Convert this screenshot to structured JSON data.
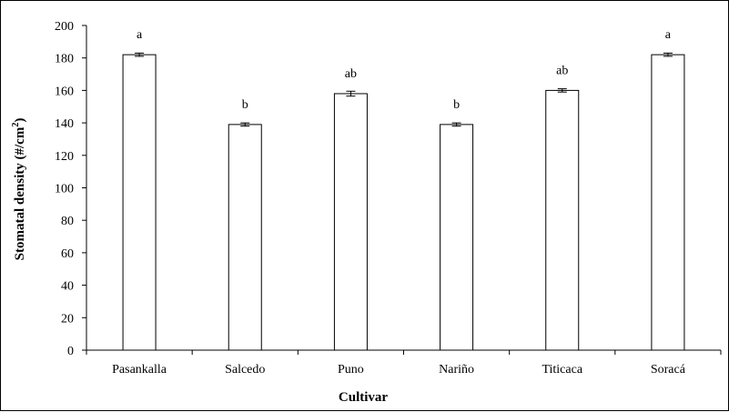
{
  "chart_data": {
    "type": "bar",
    "categories": [
      "Pasankalla",
      "Salcedo",
      "Puno",
      "Nariño",
      "Titicaca",
      "Soracá"
    ],
    "series": [
      {
        "values": [
          182,
          139,
          158,
          139,
          160,
          182
        ],
        "errors": [
          1,
          1,
          1.5,
          1,
          1,
          1
        ]
      }
    ],
    "significance_labels": [
      "a",
      "b",
      "ab",
      "b",
      "ab",
      "a"
    ],
    "xlabel": "Cultivar",
    "ylabel_main": "Stomatal density (#/cm",
    "ylabel_sup": "2",
    "ylabel_end": ")",
    "ylim": [
      0,
      200
    ],
    "yticks": [
      "0",
      "20",
      "40",
      "60",
      "80",
      "100",
      "120",
      "140",
      "160",
      "180",
      "200"
    ],
    "grid": false,
    "legend": "none",
    "colors": {
      "bar_fill": "#ffffff",
      "bar_stroke": "#000000"
    }
  }
}
